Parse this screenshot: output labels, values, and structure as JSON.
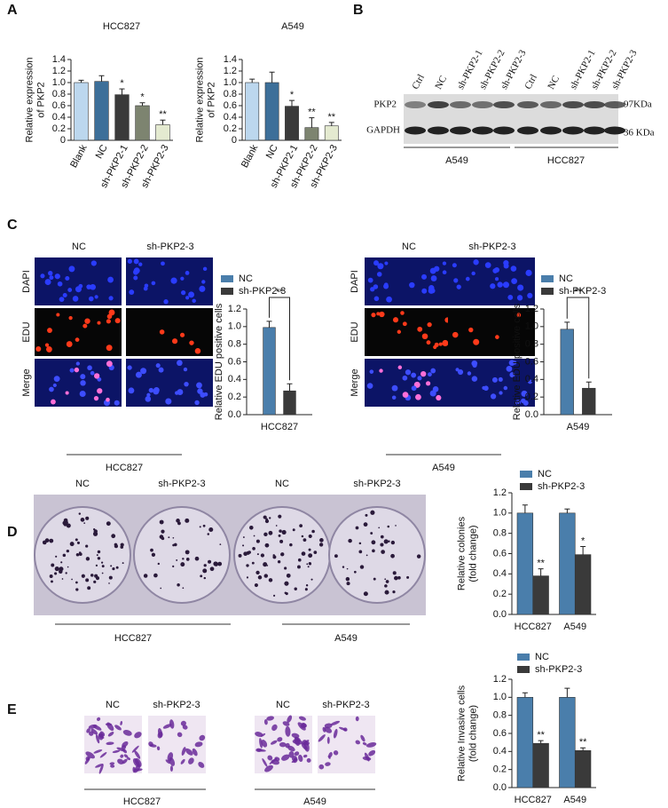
{
  "panels": {
    "letters": [
      "A",
      "B",
      "C",
      "D",
      "E"
    ]
  },
  "blot": {
    "lanes": [
      "Ctrl",
      "NC",
      "sh-PKP2-1",
      "sh-PKP2-2",
      "sh-PKP2-3",
      "Ctrl",
      "NC",
      "sh-PKP2-1",
      "sh-PKP2-2",
      "sh-PKP2-3"
    ],
    "rows": [
      "PKP2",
      "GAPDH"
    ],
    "sizes": [
      "97KDa",
      "36 KDa"
    ],
    "groups": [
      "A549",
      "HCC827"
    ]
  },
  "edu": [
    {
      "columns": [
        "NC",
        "sh-PKP2-3"
      ],
      "rows": [
        "DAPI",
        "EDU",
        "Merge"
      ],
      "cell_line": "HCC827"
    },
    {
      "columns": [
        "NC",
        "sh-PKP2-3"
      ],
      "rows": [
        "DAPI",
        "EDU",
        "Merge"
      ],
      "cell_line": "A549"
    }
  ],
  "colony": {
    "columns": [
      "NC",
      "sh-PKP2-3",
      "NC",
      "sh-PKP2-3"
    ],
    "groups": [
      "HCC827",
      "A549"
    ]
  },
  "invasion": {
    "columns": [
      "NC",
      "sh-PKP2-3",
      "NC",
      "sh-PKP2-3"
    ],
    "groups": [
      "HCC827",
      "A549"
    ]
  },
  "chart_data": [
    {
      "type": "bar",
      "title": "HCC827",
      "ylabel": [
        "Relative expression",
        "of PKP2"
      ],
      "categories": [
        "Blank",
        "NC",
        "sh-PKP2-1",
        "sh-PKP2-2",
        "sh-PKP2-3"
      ],
      "values": [
        1.0,
        1.02,
        0.79,
        0.6,
        0.27
      ],
      "errors": [
        0.04,
        0.1,
        0.1,
        0.05,
        0.08
      ],
      "annotations": [
        null,
        null,
        "*",
        "*",
        "**"
      ],
      "colors": [
        "#bcd7ee",
        "#3d6f99",
        "#3a3a3a",
        "#7d8470",
        "#e4ead0"
      ],
      "ylim": [
        0,
        1.4
      ],
      "yticks": [
        0,
        0.2,
        0.4,
        0.6,
        0.8,
        {
          "value": 1,
          "label": "1.0"
        },
        1.2,
        1.4
      ]
    },
    {
      "type": "bar",
      "title": "A549",
      "ylabel": [
        "Relative expression",
        "of PKP2"
      ],
      "categories": [
        "Blank",
        "NC",
        "sh-PKP2-1",
        "sh-PKP2-2",
        "sh-PKP2-3"
      ],
      "values": [
        1.0,
        1.0,
        0.59,
        0.22,
        0.25
      ],
      "errors": [
        0.06,
        0.18,
        0.1,
        0.17,
        0.06
      ],
      "annotations": [
        null,
        null,
        "*",
        "**",
        "**"
      ],
      "colors": [
        "#bcd7ee",
        "#3d6f99",
        "#3a3a3a",
        "#7d8470",
        "#e4ead0"
      ],
      "ylim": [
        0,
        1.4
      ],
      "yticks": [
        0,
        0.2,
        0.4,
        0.6,
        0.8,
        {
          "value": 1,
          "label": "1.0"
        },
        1.2,
        1.4
      ]
    },
    {
      "type": "bar",
      "ylabel": [
        "Relative EDU positive cells"
      ],
      "categories": [
        "HCC827"
      ],
      "series": [
        {
          "name": "NC",
          "color": "#4a7eab",
          "values": [
            0.99
          ],
          "errors": [
            0.07
          ]
        },
        {
          "name": "sh-PKP2-3",
          "color": "#3a3a3a",
          "values": [
            0.27
          ],
          "errors": [
            0.08
          ]
        }
      ],
      "significance": "**",
      "ylim": [
        0,
        1.2
      ],
      "yticks": [
        {
          "value": 0,
          "label": "0.0"
        },
        0.2,
        0.4,
        0.6,
        0.8,
        {
          "value": 1,
          "label": "1.0"
        },
        1.2
      ]
    },
    {
      "type": "bar",
      "ylabel": [
        "Relative EDU positive cells"
      ],
      "categories": [
        "A549"
      ],
      "series": [
        {
          "name": "NC",
          "color": "#4a7eab",
          "values": [
            0.97
          ],
          "errors": [
            0.08
          ]
        },
        {
          "name": "sh-PKP2-3",
          "color": "#3a3a3a",
          "values": [
            0.3
          ],
          "errors": [
            0.07
          ]
        }
      ],
      "significance": "**",
      "ylim": [
        0,
        1.2
      ],
      "yticks": [
        {
          "value": 0,
          "label": "0.0"
        },
        0.2,
        0.4,
        0.6,
        0.8,
        {
          "value": 1,
          "label": "1.0"
        },
        1.2
      ]
    },
    {
      "type": "bar",
      "ylabel": [
        "Relative colonies",
        "(fold change)"
      ],
      "categories": [
        "HCC827",
        "A549"
      ],
      "series": [
        {
          "name": "NC",
          "color": "#4a7eab",
          "values": [
            1.0,
            1.0
          ],
          "errors": [
            0.08,
            0.04
          ]
        },
        {
          "name": "sh-PKP2-3",
          "color": "#3a3a3a",
          "values": [
            0.38,
            0.59
          ],
          "errors": [
            0.07,
            0.08
          ],
          "annotations": [
            "**",
            "*"
          ]
        }
      ],
      "ylim": [
        0,
        1.2
      ],
      "yticks": [
        {
          "value": 0,
          "label": "0.0"
        },
        0.2,
        0.4,
        0.6,
        0.8,
        {
          "value": 1,
          "label": "1.0"
        },
        1.2
      ]
    },
    {
      "type": "bar",
      "ylabel": [
        "Relative Invasive cells",
        "(fold change)"
      ],
      "categories": [
        "HCC827",
        "A549"
      ],
      "series": [
        {
          "name": "NC",
          "color": "#4a7eab",
          "values": [
            1.0,
            1.0
          ],
          "errors": [
            0.05,
            0.1
          ]
        },
        {
          "name": "sh-PKP2-3",
          "color": "#3a3a3a",
          "values": [
            0.49,
            0.41
          ],
          "errors": [
            0.03,
            0.03
          ],
          "annotations": [
            "**",
            "**"
          ]
        }
      ],
      "ylim": [
        0,
        1.2
      ],
      "yticks": [
        {
          "value": 0,
          "label": "0.0"
        },
        0.2,
        0.4,
        0.6,
        0.8,
        {
          "value": 1,
          "label": "1.0"
        },
        1.2
      ]
    }
  ]
}
